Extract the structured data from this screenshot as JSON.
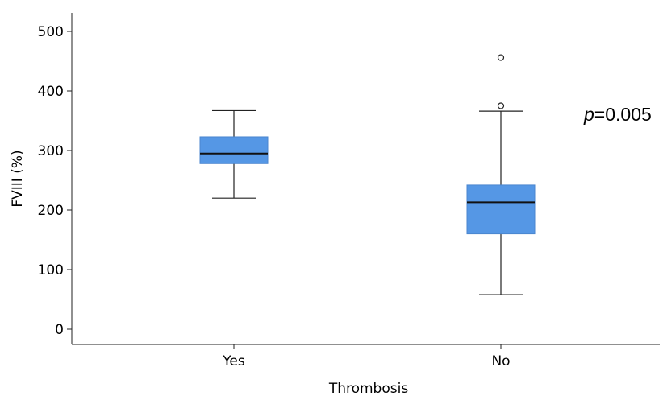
{
  "chart_data": {
    "type": "box",
    "xlabel": "Thrombosis",
    "ylabel": "FVIII (%)",
    "ylim": [
      0,
      520
    ],
    "yticks": [
      0,
      100,
      200,
      300,
      400,
      500
    ],
    "categories": [
      "Yes",
      "No"
    ],
    "boxes": [
      {
        "category": "Yes",
        "whisker_low": 220,
        "q1": 278,
        "median": 295,
        "q3": 323,
        "whisker_high": 367,
        "outliers": []
      },
      {
        "category": "No",
        "whisker_low": 58,
        "q1": 160,
        "median": 213,
        "q3": 242,
        "whisker_high": 366,
        "outliers": [
          375,
          456
        ]
      }
    ],
    "box_color": "#5597E5",
    "annotation": {
      "italic": "p",
      "text": "=0.005"
    },
    "grid": false,
    "legend": "none"
  }
}
